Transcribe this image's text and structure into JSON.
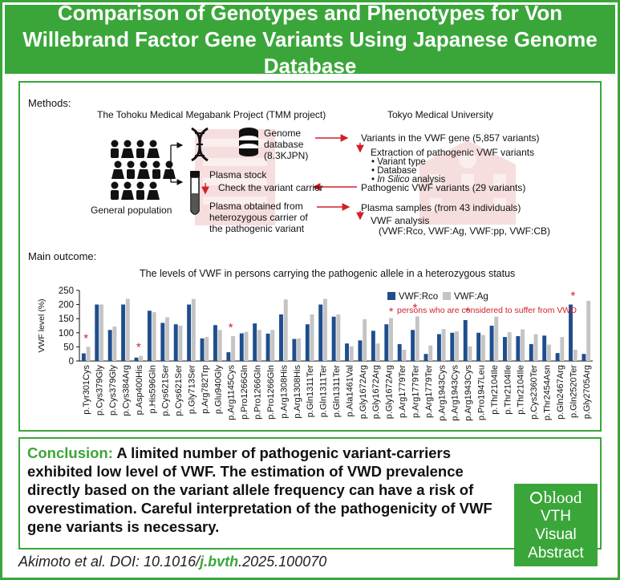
{
  "title": "Comparison of Genotypes and Phenotypes for Von Willebrand Factor Gene Variants Using Japanese Genome Database",
  "methods": {
    "label": "Methods:",
    "tmm_title": "The Tohoku Medical Megabank Project (TMM project)",
    "tmu_title": "Tokyo Medical University",
    "population_label": "General population",
    "genome_db_line1": "Genome",
    "genome_db_line2": "database",
    "genome_db_line3": "(8.3KJPN)",
    "plasma_stock": "Plasma stock",
    "check_carrier": "Check the variant carrier",
    "plasma_obtained_line1": "Plasma obtained from",
    "plasma_obtained_line2": "heterozygous carrier of",
    "plasma_obtained_line3": "the pathogenic variant",
    "variants_vwf": "Variants in the VWF gene (5,857 variants)",
    "extraction": "Extraction of pathogenic VWF variants",
    "bullets": [
      "• Variant type",
      "• Database",
      "• "
    ],
    "bullet_insilico": "In Silico",
    "bullet_analysis": " analysis",
    "pathogenic_variants": "Pathogenic VWF variants (29 variants)",
    "plasma_samples": "Plasma samples (from 43 individuals)",
    "vwf_analysis": "VWF analysis",
    "vwf_analysis_items": "(VWF:Rco, VWF:Ag, VWF:pp, VWF:CB)"
  },
  "outcome": {
    "label": "Main outcome:",
    "subtitle": "The levels of VWF in persons carrying the pathogenic allele in a heterozygous status"
  },
  "colors": {
    "green": "#3aa63a",
    "rco": "#1f4e8c",
    "ag": "#c4c4c4",
    "star": "#d0202a",
    "arrow": "#d0202a"
  },
  "chart_data": {
    "type": "bar",
    "ylabel": "VWF level (%)",
    "ylim": [
      0,
      250
    ],
    "yticks": [
      0,
      50,
      100,
      150,
      200,
      250
    ],
    "legend_placement": "top-right",
    "legend_star": "persons who are considered to suffer from VWD",
    "categories": [
      "p.Tyr301Cys",
      "p.Cys379Gly",
      "p.Cys379Gly",
      "p.Cys384Arg",
      "p.Asp400His",
      "p.His596Gln",
      "p.Cys621Ser",
      "p.Cys621Ser",
      "p.Gly713Ser",
      "p.Arg782Trp",
      "p.Glu940Gly",
      "p.Arg1145Cys",
      "p.Pro1266Gln",
      "p.Pro1266Gln",
      "p.Pro1266Gln",
      "p.Arg1308His",
      "p.Arg1308His",
      "p.Gln1311Ter",
      "p.Gln1311Ter",
      "p.Gln1311Ter",
      "p.Ala1461Val",
      "p.Gly1672Arg",
      "p.Gly1672Arg",
      "p.Gly1672Arg",
      "p.Arg1779Ter",
      "p.Arg1779Ter",
      "p.Arg1779Ter",
      "p.Arg1943Cys",
      "p.Arg1943Cys",
      "p.Arg1943Cys",
      "p.Pro1947Leu",
      "p.Thr2104Ile",
      "p.Thr2104Ile",
      "p.Thr2104Ile",
      "p.Cys2360Ter",
      "p.Thr2454Asn",
      "p.Gln2467Arg",
      "p.Gln2520Ter",
      "p.Gly2705Arg"
    ],
    "series": [
      {
        "name": "VWF:Rco",
        "values": [
          27,
          200,
          110,
          200,
          12,
          178,
          135,
          130,
          200,
          80,
          127,
          31,
          98,
          133,
          97,
          165,
          78,
          130,
          200,
          157,
          62,
          73,
          107,
          130,
          60,
          110,
          25,
          95,
          100,
          145,
          100,
          125,
          85,
          88,
          60,
          90,
          28,
          200,
          25
        ]
      },
      {
        "name": "VWF:Ag",
        "values": [
          50,
          200,
          122,
          220,
          18,
          173,
          155,
          125,
          220,
          85,
          110,
          88,
          103,
          110,
          110,
          218,
          80,
          165,
          220,
          165,
          52,
          148,
          62,
          152,
          40,
          158,
          55,
          113,
          105,
          52,
          92,
          157,
          102,
          112,
          95,
          58,
          85,
          40,
          213
        ]
      }
    ],
    "starred_indices": [
      0,
      4,
      11,
      25,
      29,
      37
    ]
  },
  "conclusion": {
    "label": "Conclusion:",
    "text": " A limited number of pathogenic variant-carriers exhibited low level of VWF. The estimation of VWD prevalence directly based on the variant allele frequency can have a risk of overestimation. Careful interpretation of the pathogenicity of VWF gene variants is necessary."
  },
  "badge": {
    "brand": "blood",
    "line1": "VTH",
    "line2": "Visual",
    "line3": "Abstract"
  },
  "citation": {
    "prefix": "Akimoto et al. DOI: 10.1016/",
    "journal": "j.bvth",
    "suffix": ".2025.100070"
  }
}
